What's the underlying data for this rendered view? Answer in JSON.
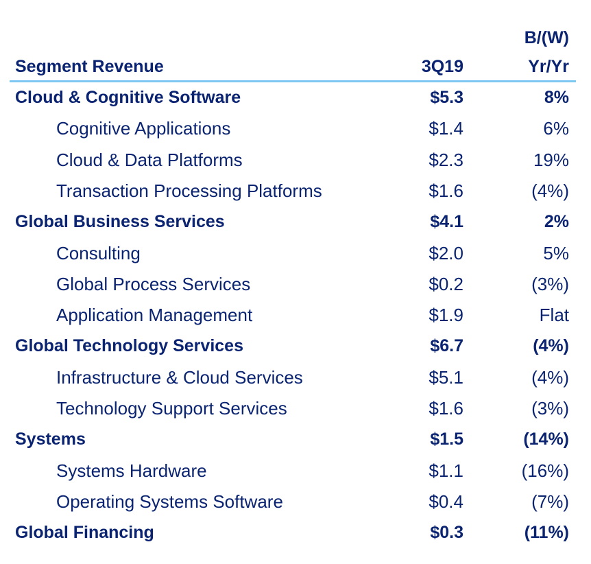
{
  "header": {
    "segment_label": "Segment Revenue",
    "period_label": "3Q19",
    "change_label_line1": "B/(W)",
    "change_label_line2": "Yr/Yr"
  },
  "colors": {
    "text": "#0b2472",
    "rule": "#7cc8f2"
  },
  "rows": [
    {
      "label": "Cloud & Cognitive Software",
      "value": "$5.3",
      "change": "8%",
      "level": "segment"
    },
    {
      "label": "Cognitive Applications",
      "value": "$1.4",
      "change": "6%",
      "level": "sub"
    },
    {
      "label": "Cloud & Data Platforms",
      "value": "$2.3",
      "change": "19%",
      "level": "sub"
    },
    {
      "label": "Transaction Processing Platforms",
      "value": "$1.6",
      "change": "(4%)",
      "level": "sub"
    },
    {
      "label": "Global Business Services",
      "value": "$4.1",
      "change": "2%",
      "level": "segment"
    },
    {
      "label": "Consulting",
      "value": "$2.0",
      "change": "5%",
      "level": "sub"
    },
    {
      "label": "Global Process Services",
      "value": "$0.2",
      "change": "(3%)",
      "level": "sub"
    },
    {
      "label": "Application Management",
      "value": "$1.9",
      "change": "Flat",
      "level": "sub"
    },
    {
      "label": "Global Technology Services",
      "value": "$6.7",
      "change": "(4%)",
      "level": "segment"
    },
    {
      "label": "Infrastructure & Cloud Services",
      "value": "$5.1",
      "change": "(4%)",
      "level": "sub"
    },
    {
      "label": "Technology Support Services",
      "value": "$1.6",
      "change": "(3%)",
      "level": "sub"
    },
    {
      "label": "Systems",
      "value": "$1.5",
      "change": "(14%)",
      "level": "segment"
    },
    {
      "label": "Systems Hardware",
      "value": "$1.1",
      "change": "(16%)",
      "level": "sub"
    },
    {
      "label": "Operating Systems Software",
      "value": "$0.4",
      "change": "(7%)",
      "level": "sub"
    },
    {
      "label": "Global Financing",
      "value": "$0.3",
      "change": "(11%)",
      "level": "segment"
    }
  ]
}
